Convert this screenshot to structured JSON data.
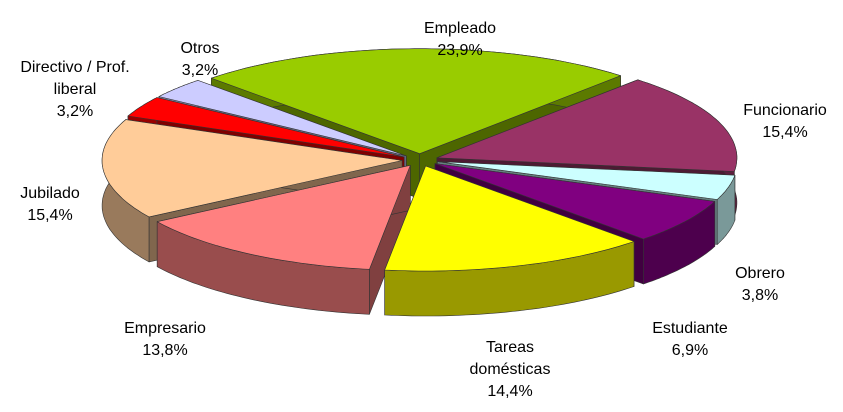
{
  "chart_data": {
    "type": "pie3d",
    "categories": [
      "Empleado",
      "Funcionario",
      "Obrero",
      "Estudiante",
      "Tareas domésticas",
      "Empresario",
      "Jubilado",
      "Directivo / Prof. liberal",
      "Otros"
    ],
    "values": [
      23.9,
      15.4,
      3.8,
      6.9,
      14.4,
      13.8,
      15.4,
      3.2,
      3.2
    ],
    "value_labels": [
      "23,9%",
      "15,4%",
      "3,8%",
      "6,9%",
      "14,4%",
      "13,8%",
      "15,4%",
      "3,2%",
      "3,2%"
    ],
    "colors": [
      "#99cc00",
      "#993366",
      "#ccffff",
      "#800080",
      "#ffff00",
      "#ff8080",
      "#ffcc99",
      "#ff0000",
      "#ccccff"
    ]
  }
}
